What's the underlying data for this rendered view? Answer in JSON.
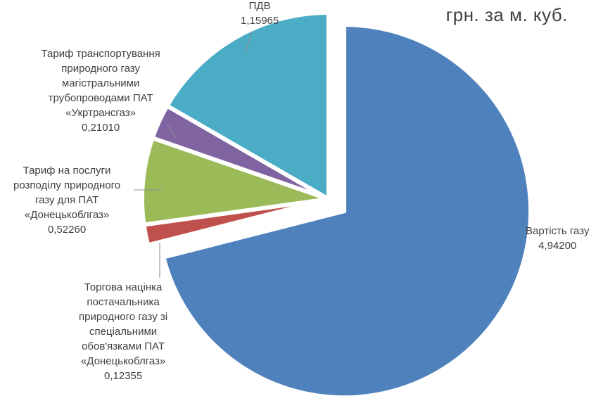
{
  "chart_data": {
    "type": "pie",
    "title": "грн. за м. куб.",
    "slices": [
      {
        "name": "Вартість газу",
        "name_lines": [
          "Вартість газу"
        ],
        "value": 4.942,
        "value_label": "4,94200",
        "color": "#4f81bd",
        "exploded": true
      },
      {
        "name": "Торгова націнка постачальника природного газу зі спеціальними обов'язками ПАТ «Донецькоблгаз»",
        "name_lines": [
          "Торгова націнка",
          "постачальника",
          "природного газу зі",
          "спеціальними",
          "обов'язками ПАТ",
          "«Донецькоблгаз»"
        ],
        "value": 0.12355,
        "value_label": "0,12355",
        "color": "#c0504d",
        "exploded": false
      },
      {
        "name": "Тариф на послуги розподілу природного газу для ПАТ «Донецькоблгаз»",
        "name_lines": [
          "Тариф на послуги",
          "розподілу природного",
          "газу для ПАТ",
          "«Донецькоблгаз»"
        ],
        "value": 0.5226,
        "value_label": "0,52260",
        "color": "#9bbb59",
        "exploded": false
      },
      {
        "name": "Тариф транспортування природного газу магістральними трубопроводами ПАТ «Укртрансгаз»",
        "name_lines": [
          "Тариф транспортування",
          "природного газу",
          "магістральними",
          "трубопроводами ПАТ",
          "«Укртрансгаз»"
        ],
        "value": 0.2101,
        "value_label": "0,21010",
        "color": "#8064a2",
        "exploded": false
      },
      {
        "name": "ПДВ",
        "name_lines": [
          "ПДВ"
        ],
        "value": 1.15965,
        "value_label": "1,15965",
        "color": "#4bacc6",
        "exploded": false
      }
    ],
    "legend": "none",
    "data_labels": "outside with leader lines"
  }
}
